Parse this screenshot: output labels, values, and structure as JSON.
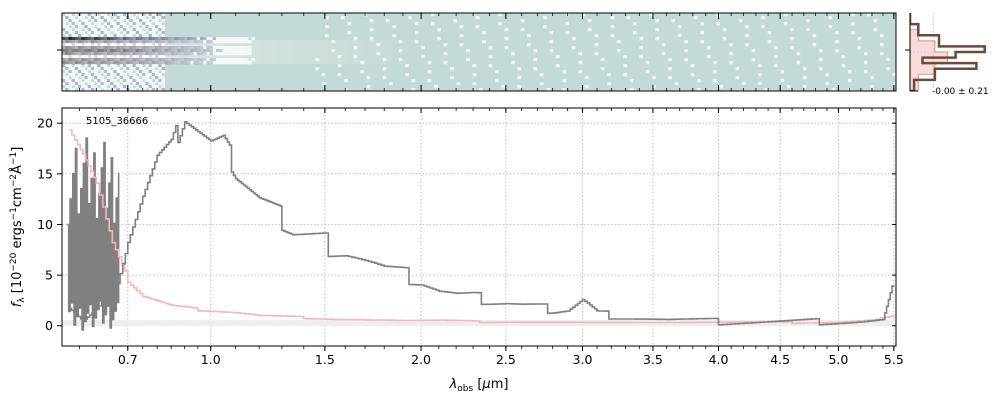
{
  "chart_data": [
    {
      "type": "heatmap",
      "panel": "2d-spectrum",
      "colormap": "bone_r",
      "background_color": "#c4dad8",
      "xlim": [
        0.5,
        5.52
      ],
      "x_scale": "sqrt"
    },
    {
      "type": "line",
      "panel": "1d-spectrum",
      "title": "",
      "label": "5105_36666",
      "xlabel": "λ_obs [µm]",
      "ylabel": "f_λ [10^-20 ergs^-1 cm^-2 Å^-1]",
      "xlim": [
        0.5,
        5.52
      ],
      "ylim": [
        -2,
        21.5
      ],
      "x_scale": "sqrt",
      "x_ticks": [
        0.7,
        1.0,
        1.5,
        2.0,
        2.5,
        3.0,
        3.5,
        4.0,
        4.5,
        5.0,
        5.5
      ],
      "x_tick_labels": [
        "0.7",
        "1.0",
        "1.5",
        "2.0",
        "2.5",
        "3.0",
        "3.5",
        "4.0",
        "4.5",
        "5.0",
        "5.5"
      ],
      "y_ticks": [
        0,
        5,
        10,
        15,
        20
      ],
      "y_tick_labels": [
        "0",
        "5",
        "10",
        "15",
        "20"
      ],
      "grid": true,
      "series": [
        {
          "role": "data",
          "color": "#808080",
          "style": "step",
          "x": [
            0.52,
            0.56,
            0.6,
            0.65,
            0.7,
            0.75,
            0.8,
            0.85,
            0.9,
            0.95,
            1.0,
            1.05,
            1.1,
            1.15,
            1.2,
            1.25,
            1.3,
            1.35,
            1.4,
            1.45,
            1.5,
            1.6,
            1.7,
            1.8,
            1.9,
            2.0,
            2.1,
            2.2,
            2.3,
            2.4,
            2.5,
            2.6,
            2.7,
            2.8,
            2.9,
            3.0,
            3.1,
            3.2,
            3.4,
            3.6,
            3.8,
            4.0,
            4.2,
            4.4,
            4.6,
            4.8,
            5.0,
            5.2,
            5.4,
            5.5
          ],
          "y": [
            2.0,
            0.5,
            1.5,
            3.0,
            9.0,
            13.0,
            16.5,
            17.5,
            21.0,
            19.5,
            18.0,
            18.0,
            15.5,
            14.0,
            12.5,
            11.5,
            10.5,
            9.5,
            9.0,
            8.5,
            8.0,
            7.5,
            6.5,
            5.5,
            5.0,
            4.5,
            3.5,
            3.0,
            2.8,
            2.5,
            2.3,
            2.0,
            1.8,
            1.6,
            1.6,
            2.5,
            1.2,
            1.0,
            0.8,
            0.6,
            0.5,
            0.4,
            0.4,
            0.4,
            0.4,
            0.4,
            0.4,
            0.4,
            0.5,
            4.0
          ]
        },
        {
          "role": "model",
          "color": "#f4b8b8",
          "style": "step",
          "x": [
            0.52,
            0.56,
            0.6,
            0.65,
            0.7,
            0.75,
            0.8,
            0.85,
            0.9,
            0.95,
            1.0,
            1.1,
            1.2,
            1.3,
            1.4,
            1.5,
            1.7,
            1.9,
            2.1,
            2.3,
            2.5,
            3.0,
            3.5,
            4.0,
            4.5,
            5.0,
            5.3,
            5.5
          ],
          "y": [
            19.5,
            17.0,
            14.0,
            8.0,
            4.5,
            3.0,
            2.5,
            2.0,
            1.8,
            1.6,
            1.5,
            1.3,
            1.0,
            0.9,
            0.8,
            0.7,
            0.6,
            0.5,
            0.5,
            0.4,
            0.4,
            0.35,
            0.3,
            0.3,
            0.3,
            0.4,
            0.6,
            1.0
          ]
        }
      ]
    },
    {
      "type": "line",
      "panel": "profile",
      "annotation": "-0.00 ± 0.21",
      "series": [
        {
          "role": "data",
          "color": "#6b4a3e",
          "style": "step",
          "x": [
            0.0,
            0.1,
            0.35,
            0.9,
            0.55,
            0.15,
            0.8,
            0.3,
            0.05,
            0.0
          ],
          "y": [
            -3.5,
            -2.5,
            -1.5,
            -0.5,
            0.0,
            0.5,
            1.0,
            1.5,
            2.5,
            3.5
          ]
        },
        {
          "role": "model",
          "color": "#f4b8b8",
          "style": "filled-step",
          "x": [
            0.0,
            0.1,
            0.3,
            0.45,
            0.3,
            0.1,
            0.0
          ],
          "y": [
            -3.5,
            -2.0,
            -1.0,
            0.0,
            1.0,
            2.0,
            3.5
          ]
        }
      ]
    }
  ]
}
